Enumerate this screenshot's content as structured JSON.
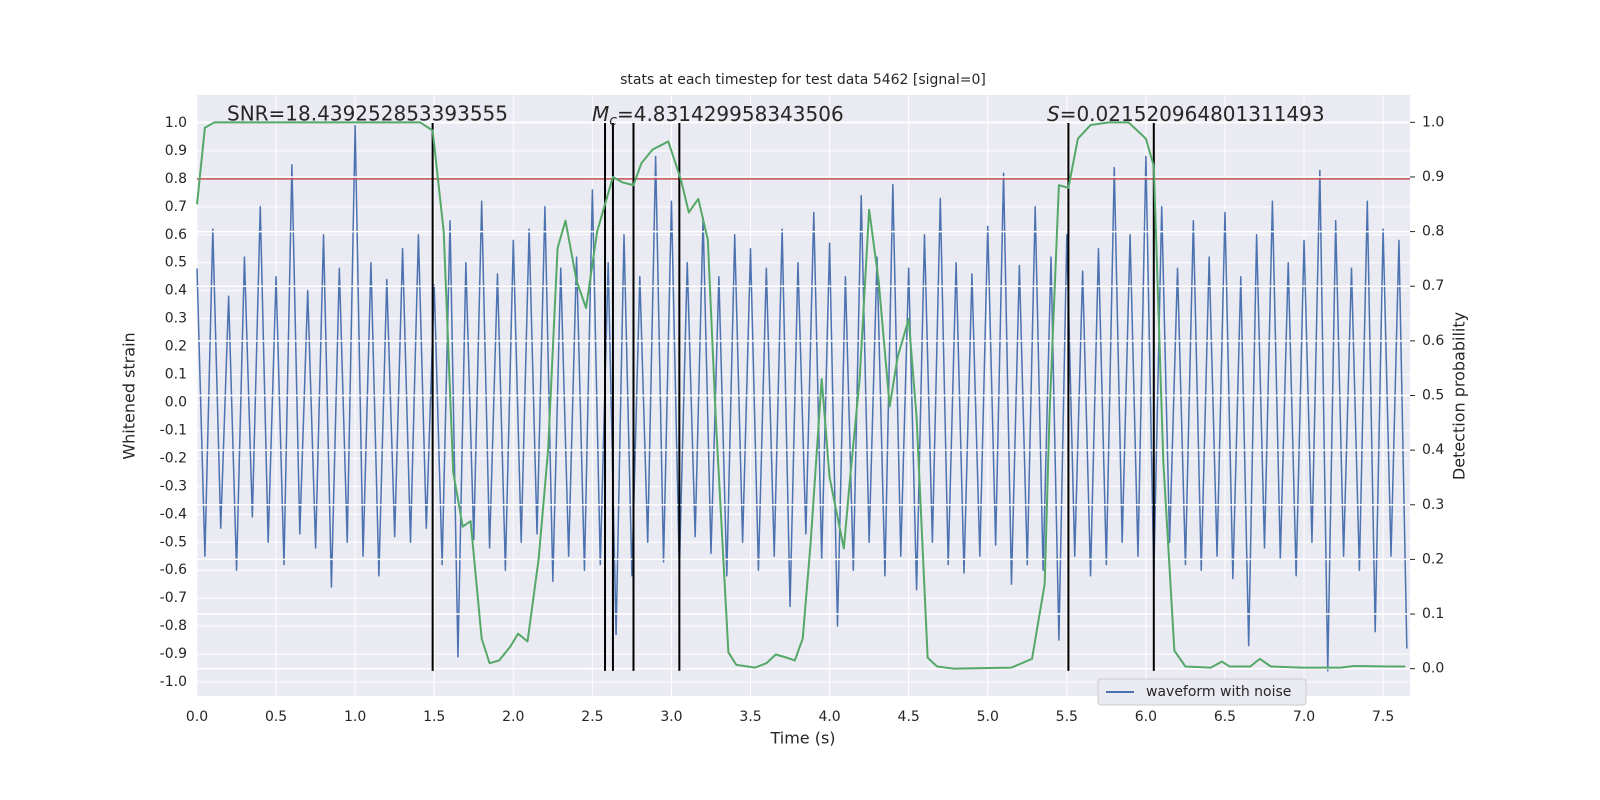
{
  "chart_data": {
    "type": "line",
    "title": "stats at each timestep for test data 5462 [signal=0]",
    "xlabel": "Time (s)",
    "ylabel": "Whitened strain",
    "y2label": "Detection probability",
    "xlim": [
      0,
      7.67
    ],
    "ylim": [
      -1.05,
      1.1
    ],
    "y2lim": [
      -0.05,
      1.05
    ],
    "xticks": [
      {
        "value": 0,
        "label": "0.0"
      },
      0.5,
      {
        "value": 1,
        "label": "1.0"
      },
      1.5,
      {
        "value": 2,
        "label": "2.0"
      },
      2.5,
      {
        "value": 3,
        "label": "3.0"
      },
      3.5,
      {
        "value": 4,
        "label": "4.0"
      },
      4.5,
      {
        "value": 5,
        "label": "5.0"
      },
      5.5,
      {
        "value": 6,
        "label": "6.0"
      },
      6.5,
      {
        "value": 7,
        "label": "7.0"
      },
      7.5
    ],
    "yticks": [
      {
        "value": -1,
        "label": "-1.0"
      },
      -0.9,
      -0.8,
      -0.7,
      -0.6,
      -0.5,
      -0.4,
      -0.3,
      -0.2,
      -0.1,
      {
        "value": 0,
        "label": "0.0"
      },
      0.1,
      0.2,
      0.3,
      0.4,
      0.5,
      0.6,
      0.7,
      0.8,
      0.9,
      {
        "value": 1,
        "label": "1.0"
      }
    ],
    "y2ticks": [
      {
        "value": 0,
        "label": "0.0"
      },
      0.1,
      0.2,
      0.3,
      0.4,
      0.5,
      0.6,
      0.7,
      0.8,
      0.9,
      {
        "value": 1,
        "label": "1.0"
      }
    ],
    "grid": true,
    "legend": "lower right",
    "series": [
      {
        "name": "waveform with noise",
        "color": "#4c72b0",
        "x": [
          0,
          0.05,
          0.1,
          0.15,
          0.2,
          0.25,
          0.3,
          0.35,
          0.4,
          0.45,
          0.5,
          0.55,
          0.6,
          0.65,
          0.7,
          0.75,
          0.8,
          0.85,
          0.9,
          0.95,
          1,
          1.05,
          1.1,
          1.15,
          1.2,
          1.25,
          1.3,
          1.35,
          1.4,
          1.45,
          1.5,
          1.55,
          1.6,
          1.65,
          1.7,
          1.75,
          1.8,
          1.85,
          1.9,
          1.95,
          2,
          2.05,
          2.1,
          2.15,
          2.2,
          2.25,
          2.3,
          2.35,
          2.4,
          2.45,
          2.5,
          2.55,
          2.6,
          2.65,
          2.7,
          2.75,
          2.8,
          2.85,
          2.9,
          2.95,
          3,
          3.05,
          3.1,
          3.15,
          3.2,
          3.25,
          3.3,
          3.35,
          3.4,
          3.45,
          3.5,
          3.55,
          3.6,
          3.65,
          3.7,
          3.75,
          3.8,
          3.85,
          3.9,
          3.95,
          4,
          4.05,
          4.1,
          4.15,
          4.2,
          4.25,
          4.3,
          4.35,
          4.4,
          4.45,
          4.5,
          4.55,
          4.6,
          4.65,
          4.7,
          4.75,
          4.8,
          4.85,
          4.9,
          4.95,
          5,
          5.05,
          5.1,
          5.15,
          5.2,
          5.25,
          5.3,
          5.35,
          5.4,
          5.45,
          5.5,
          5.55,
          5.6,
          5.65,
          5.7,
          5.75,
          5.8,
          5.85,
          5.9,
          5.95,
          6,
          6.05,
          6.1,
          6.15,
          6.2,
          6.25,
          6.3,
          6.35,
          6.4,
          6.45,
          6.5,
          6.55,
          6.6,
          6.65,
          6.7,
          6.75,
          6.8,
          6.85,
          6.9,
          6.95,
          7,
          7.05,
          7.1,
          7.15,
          7.2,
          7.25,
          7.3,
          7.35,
          7.4,
          7.45,
          7.5,
          7.55,
          7.6,
          7.65
        ],
        "values": [
          0.48,
          -0.55,
          0.62,
          -0.45,
          0.38,
          -0.6,
          0.52,
          -0.41,
          0.7,
          -0.5,
          0.45,
          -0.58,
          0.85,
          -0.47,
          0.4,
          -0.52,
          0.6,
          -0.66,
          0.48,
          -0.5,
          0.99,
          -0.55,
          0.5,
          -0.62,
          0.44,
          -0.48,
          0.55,
          -0.5,
          0.6,
          -0.45,
          0.42,
          -0.58,
          0.65,
          -0.91,
          0.5,
          -0.49,
          0.72,
          -0.52,
          0.46,
          -0.6,
          0.58,
          -0.5,
          0.62,
          -0.47,
          0.7,
          -0.64,
          0.48,
          -0.55,
          0.52,
          -0.6,
          0.76,
          -0.58,
          0.5,
          -0.83,
          0.6,
          -0.62,
          0.45,
          -0.5,
          0.88,
          -0.57,
          0.72,
          -0.6,
          0.5,
          -0.48,
          0.66,
          -0.54,
          0.45,
          -0.62,
          0.6,
          -0.5,
          0.55,
          -0.6,
          0.48,
          -0.55,
          0.62,
          -0.73,
          0.5,
          -0.47,
          0.68,
          -0.56,
          0.57,
          -0.8,
          0.45,
          -0.6,
          0.74,
          -0.5,
          0.52,
          -0.62,
          0.78,
          -0.55,
          0.48,
          -0.67,
          0.6,
          -0.5,
          0.73,
          -0.58,
          0.5,
          -0.61,
          0.46,
          -0.55,
          0.63,
          -0.51,
          0.82,
          -0.65,
          0.49,
          -0.58,
          0.7,
          -0.6,
          0.52,
          -0.85,
          0.6,
          -0.55,
          0.47,
          -0.62,
          0.55,
          -0.58,
          0.84,
          -0.5,
          0.6,
          -0.55,
          0.88,
          -0.62,
          0.7,
          -0.5,
          0.48,
          -0.58,
          0.65,
          -0.6,
          0.52,
          -0.55,
          0.68,
          -0.63,
          0.45,
          -0.87,
          0.6,
          -0.52,
          0.72,
          -0.56,
          0.5,
          -0.62,
          0.58,
          -0.5,
          0.83,
          -0.96,
          0.65,
          -0.55,
          0.48,
          -0.6,
          0.72,
          -0.82,
          0.62,
          -0.55,
          0.58,
          -0.88
        ]
      },
      {
        "color": "#55a868",
        "axis": "y2",
        "x": [
          0,
          0.05,
          0.11,
          0.5,
          1,
          1.41,
          1.49,
          1.56,
          1.62,
          1.68,
          1.73,
          1.8,
          1.85,
          1.91,
          1.98,
          2.03,
          2.09,
          2.16,
          2.22,
          2.28,
          2.33,
          2.4,
          2.46,
          2.53,
          2.63,
          2.69,
          2.76,
          2.81,
          2.88,
          2.98,
          3.06,
          3.11,
          3.17,
          3.23,
          3.28,
          3.36,
          3.41,
          3.53,
          3.6,
          3.66,
          3.73,
          3.78,
          3.83,
          3.88,
          3.95,
          4,
          4.09,
          4.13,
          4.19,
          4.25,
          4.31,
          4.38,
          4.43,
          4.5,
          4.55,
          4.62,
          4.68,
          4.79,
          5.15,
          5.28,
          5.36,
          5.39,
          5.45,
          5.51,
          5.57,
          5.65,
          5.77,
          5.89,
          6,
          6.05,
          6.11,
          6.18,
          6.25,
          6.41,
          6.48,
          6.53,
          6.66,
          6.72,
          6.79,
          6.98,
          7.23,
          7.32,
          7.54,
          7.64
        ],
        "values": [
          0.85,
          0.99,
          1,
          1,
          1,
          1,
          0.985,
          0.8,
          0.36,
          0.26,
          0.27,
          0.055,
          0.01,
          0.015,
          0.04,
          0.064,
          0.05,
          0.2,
          0.4,
          0.77,
          0.82,
          0.71,
          0.66,
          0.8,
          0.9,
          0.89,
          0.885,
          0.925,
          0.95,
          0.965,
          0.895,
          0.835,
          0.86,
          0.785,
          0.46,
          0.03,
          0.007,
          0.002,
          0.01,
          0.026,
          0.02,
          0.015,
          0.055,
          0.23,
          0.53,
          0.35,
          0.22,
          0.35,
          0.53,
          0.84,
          0.71,
          0.48,
          0.57,
          0.64,
          0.46,
          0.02,
          0.004,
          0,
          0.002,
          0.018,
          0.155,
          0.46,
          0.885,
          0.88,
          0.97,
          0.995,
          1,
          1,
          0.97,
          0.92,
          0.38,
          0.033,
          0.004,
          0.002,
          0.013,
          0.004,
          0.004,
          0.018,
          0.004,
          0.002,
          0.002,
          0.005,
          0.004,
          0.004
        ]
      }
    ],
    "hlines": [
      {
        "y": 0.8,
        "color": "#c44e52"
      }
    ],
    "vlines": {
      "x": [
        1.49,
        2.58,
        2.63,
        2.76,
        3.05,
        5.51,
        6.05
      ],
      "ymin": -0.96,
      "ymax": 1.0,
      "color": "#000000"
    },
    "annotations": [
      {
        "text": "SNR=18.439252853393555"
      },
      {
        "symbol": "M",
        "subscript": "c",
        "text": "=4.831429958343506"
      },
      {
        "symbol": "S",
        "text": "=0.021520964801311493"
      }
    ]
  }
}
